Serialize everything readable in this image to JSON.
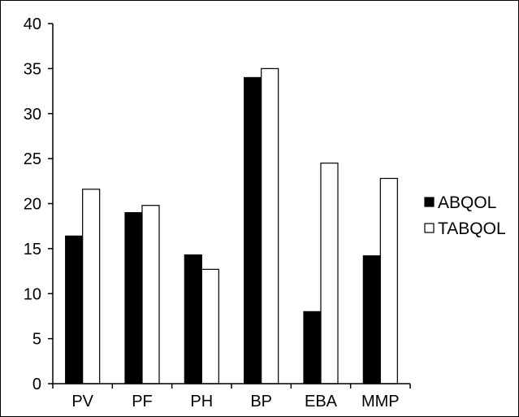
{
  "chart_data": {
    "type": "bar",
    "title": "",
    "xlabel": "",
    "ylabel": "",
    "categories": [
      "PV",
      "PF",
      "PH",
      "BP",
      "EBA",
      "MMP"
    ],
    "series": [
      {
        "name": "ABQOL",
        "color": "#000000",
        "values": [
          16.4,
          19.0,
          14.3,
          34.0,
          8.0,
          14.2
        ]
      },
      {
        "name": "TABQOL",
        "color": "#ffffff",
        "values": [
          21.6,
          19.8,
          12.7,
          35.0,
          24.5,
          22.8
        ]
      }
    ],
    "ylim": [
      0,
      40
    ],
    "yticks": [
      0,
      5,
      10,
      15,
      20,
      25,
      30,
      35,
      40
    ],
    "grid": false,
    "legend_position": "right"
  }
}
